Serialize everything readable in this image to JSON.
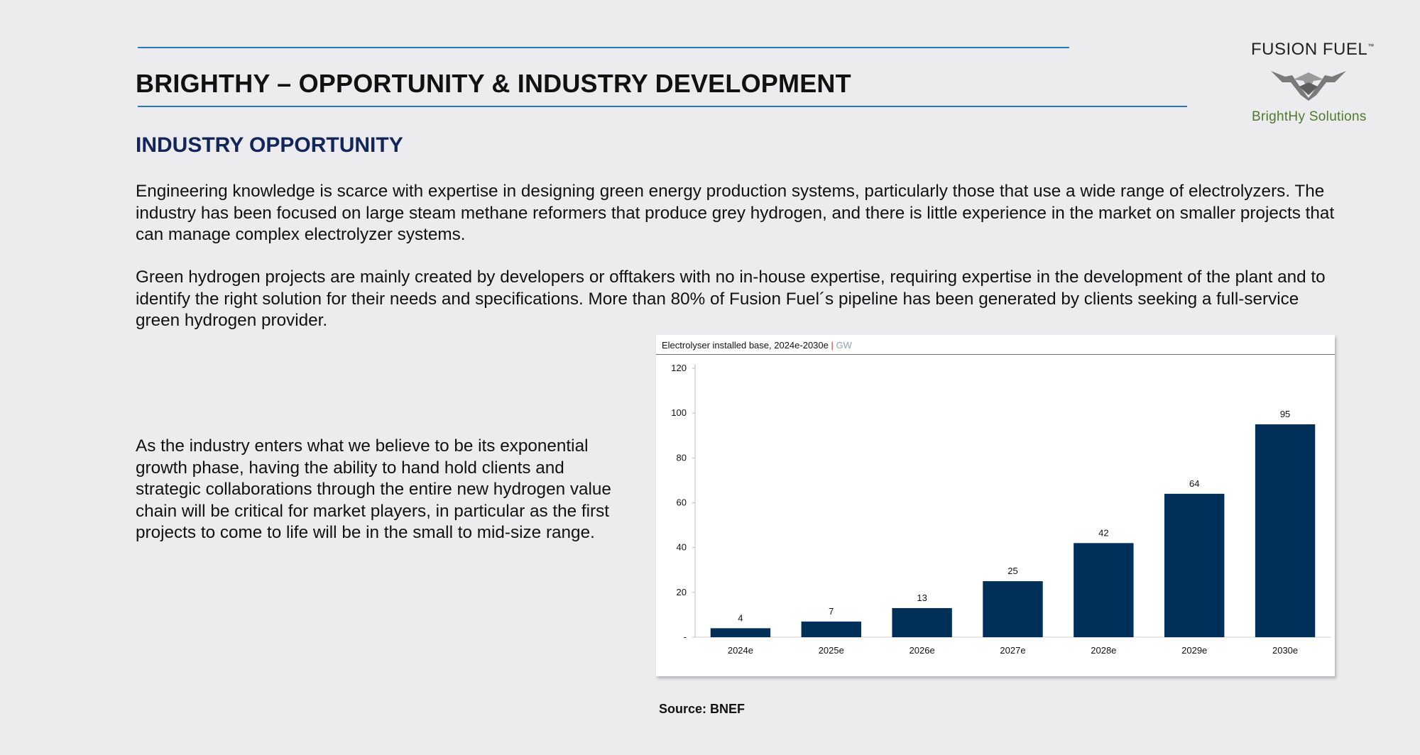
{
  "slide": {
    "title": "BRIGHTHY – OPPORTUNITY & INDUSTRY DEVELOPMENT",
    "section_heading": "INDUSTRY OPPORTUNITY",
    "paragraph_1": "Engineering knowledge is scarce with expertise in designing green energy production systems, particularly those that use a wide range of electrolyzers. The industry has been focused on large steam methane reformers that produce grey hydrogen, and there is little experience in the market on smaller projects that can manage complex electrolyzer systems.",
    "paragraph_2": "Green hydrogen projects are mainly created by developers or offtakers with no in-house expertise, requiring expertise in the development of the plant and to identify the right solution for their needs and specifications. More than 80% of Fusion Fuel´s pipeline has been generated by clients seeking a full-service green hydrogen provider.",
    "paragraph_3": "As the industry enters what we believe to be its exponential growth phase, having the ability to hand hold clients and strategic collaborations through the entire new hydrogen value chain will be critical for market players, in particular as the first projects to come to life will be in the small to mid-size range.",
    "source": "Source: BNEF"
  },
  "logo": {
    "wordmark": "FUSION FUEL",
    "trademark": "™",
    "subtitle": "BrightHy Solutions"
  },
  "colors": {
    "accent_rule": "#2a78b5",
    "heading": "#12265a",
    "bar": "#002f57",
    "logo_green": "#4d7a2e",
    "logo_grey": "#7a7a7a"
  },
  "chart_data": {
    "type": "bar",
    "title": "Electrolyser installed base, 2024e-2030e",
    "title_separator": "|",
    "unit": "GW",
    "categories": [
      "2024e",
      "2025e",
      "2026e",
      "2027e",
      "2028e",
      "2029e",
      "2030e"
    ],
    "values": [
      4,
      7,
      13,
      25,
      42,
      64,
      95
    ],
    "ylim": [
      0,
      120
    ],
    "yticks": [
      0,
      20,
      40,
      60,
      80,
      100,
      120
    ],
    "ytick_labels": [
      "-",
      "20",
      "40",
      "60",
      "80",
      "100",
      "120"
    ],
    "xlabel": "",
    "ylabel": "",
    "grid": false,
    "data_labels": true
  }
}
